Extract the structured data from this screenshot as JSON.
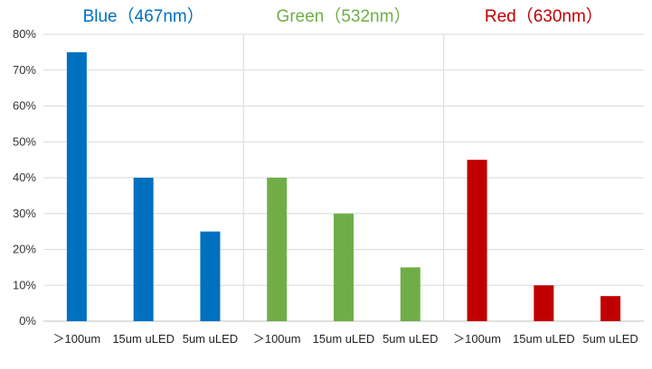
{
  "chart_data": {
    "type": "bar",
    "grid": true,
    "ylim": [
      0,
      80
    ],
    "ytick_step": 10,
    "y_tick_format": "percent",
    "groups": [
      {
        "title": "Blue（467nm）",
        "color": "#0070C0",
        "categories": [
          "＞100um",
          "15um uLED",
          "5um uLED"
        ],
        "values": [
          75,
          40,
          25
        ]
      },
      {
        "title": "Green（532nm）",
        "color": "#70AD47",
        "categories": [
          "＞100um",
          "15um uLED",
          "5um uLED"
        ],
        "values": [
          40,
          30,
          15
        ]
      },
      {
        "title": "Red（630nm）",
        "color": "#C00000",
        "categories": [
          "＞100um",
          "15um uLED",
          "5um uLED"
        ],
        "values": [
          45,
          10,
          7
        ]
      }
    ]
  }
}
